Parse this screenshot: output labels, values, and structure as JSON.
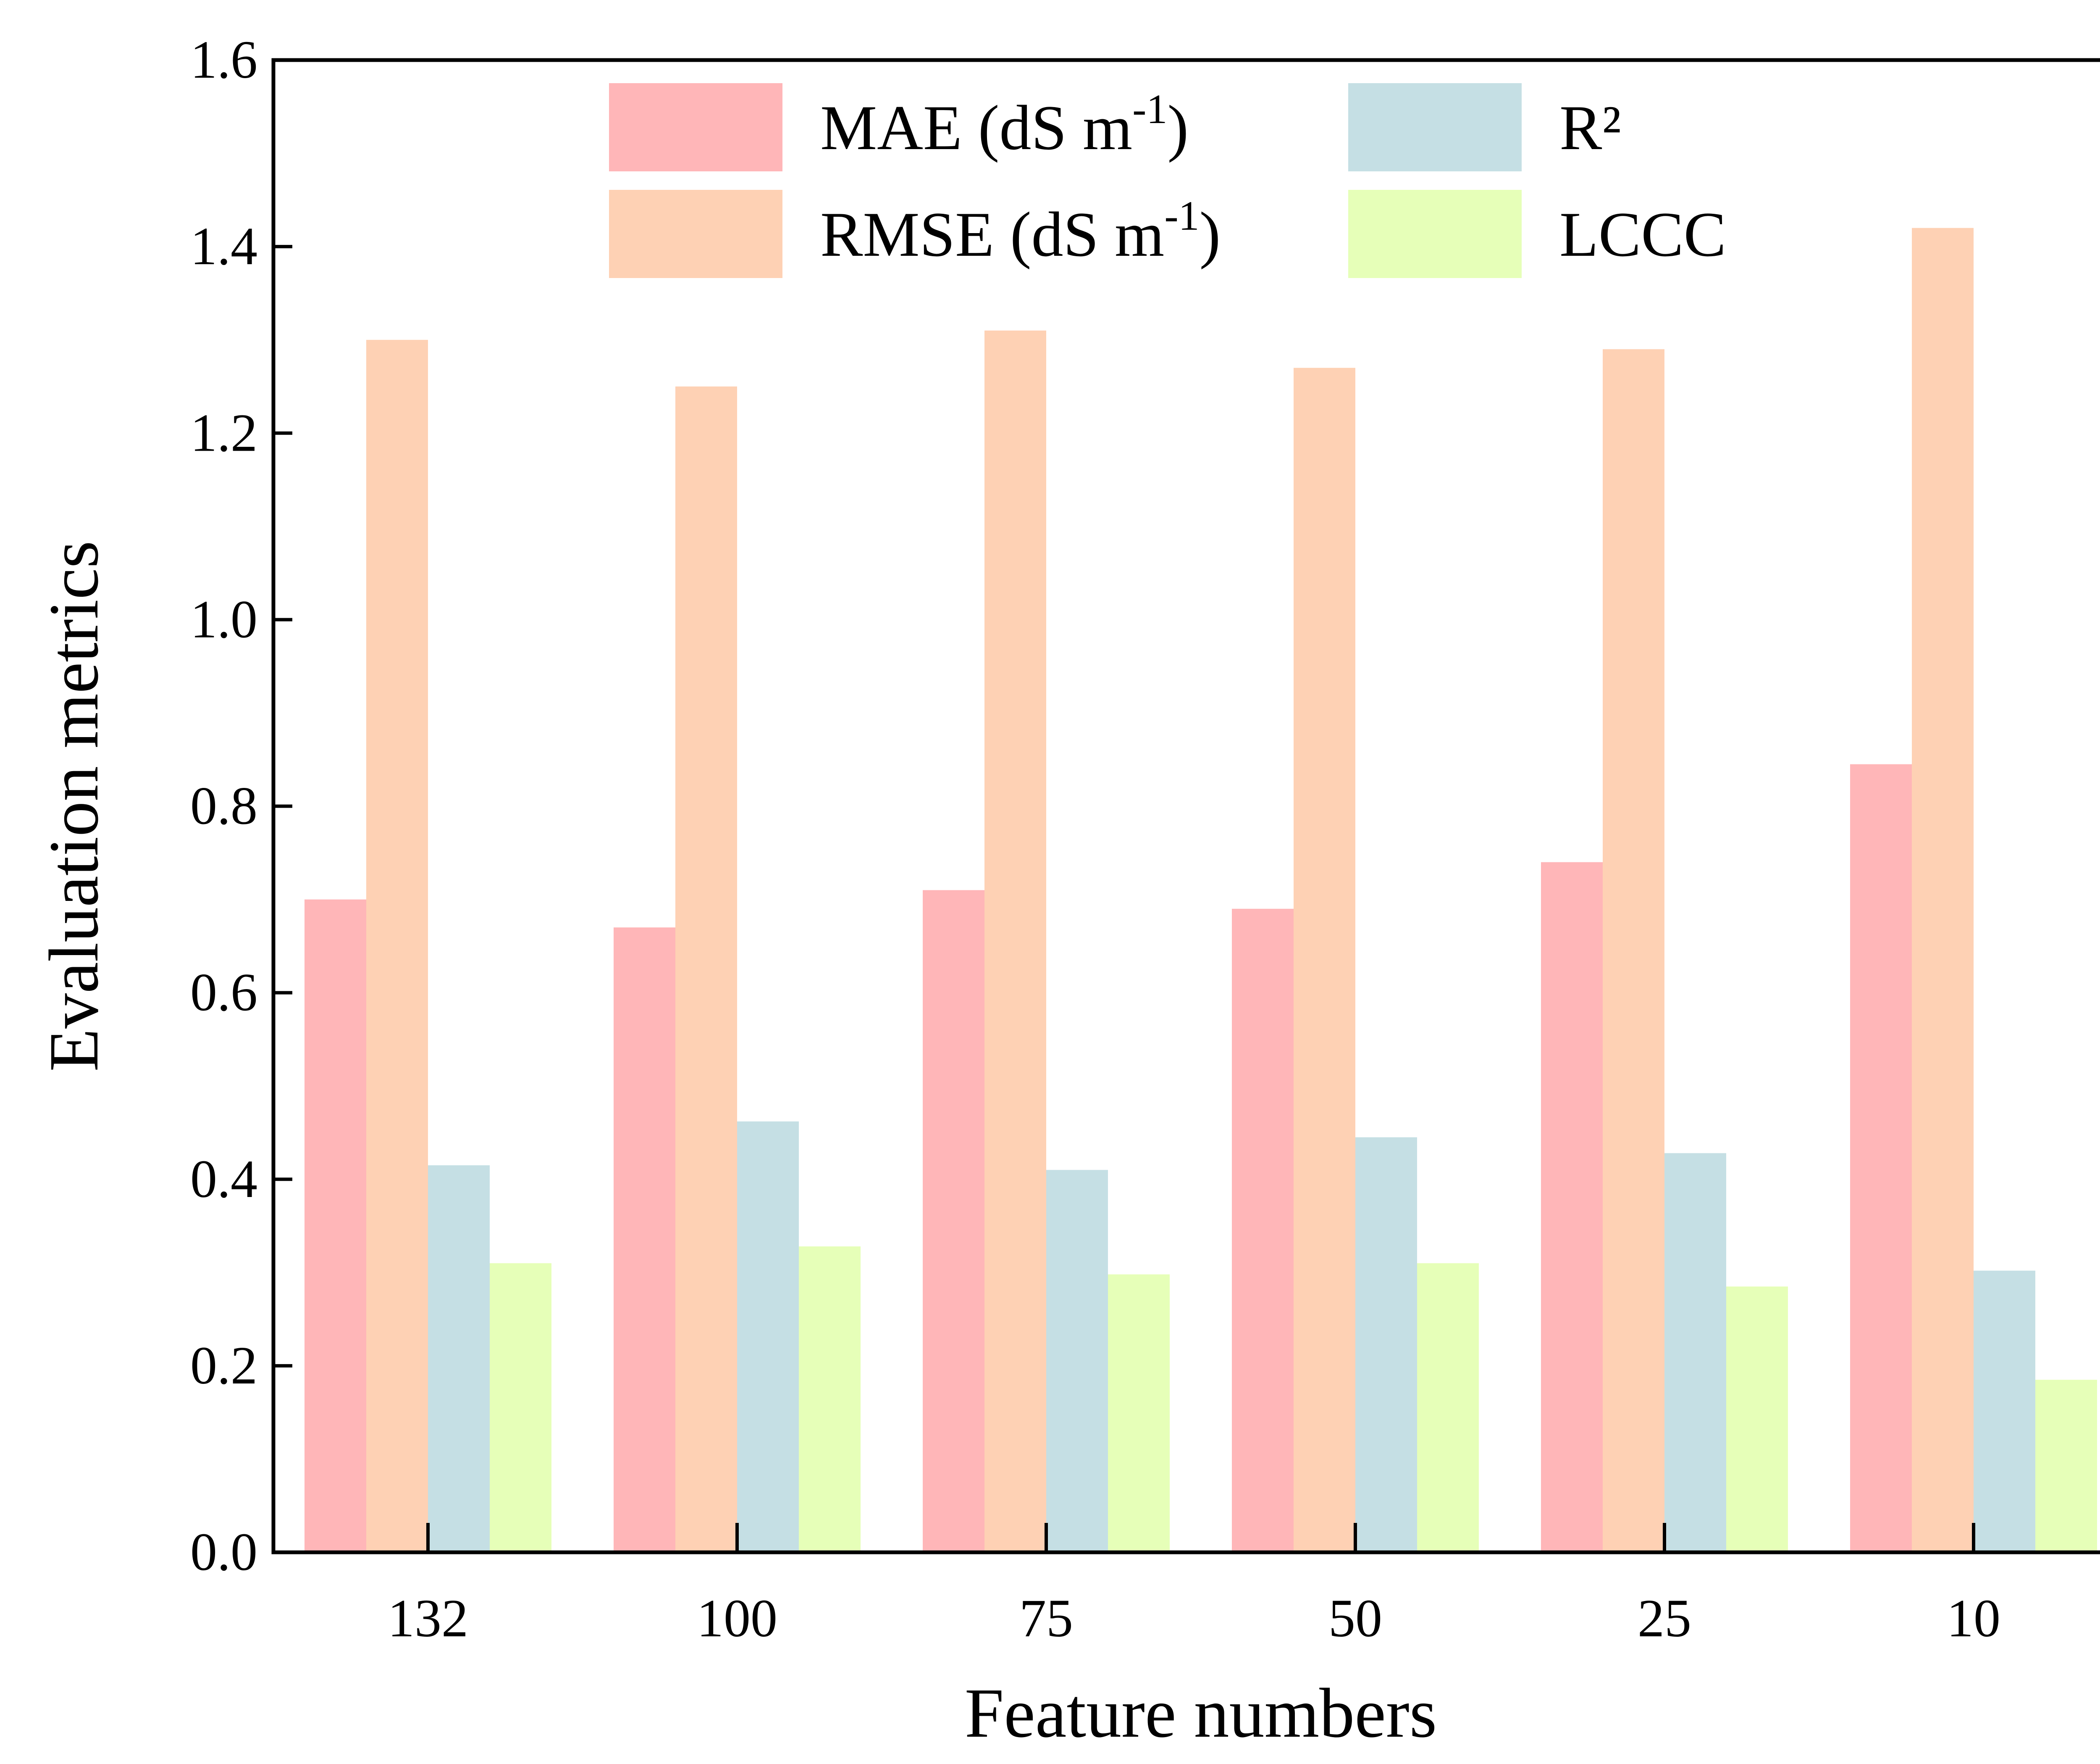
{
  "chart_data": {
    "type": "bar",
    "title": "",
    "xlabel": "Feature numbers",
    "ylabel": "Evaluation metrics",
    "categories": [
      "132",
      "100",
      "75",
      "50",
      "25",
      "10"
    ],
    "ylim": [
      0,
      1.6
    ],
    "yticks": [
      "0.0",
      "0.2",
      "0.4",
      "0.6",
      "0.8",
      "1.0",
      "1.2",
      "1.4",
      "1.6"
    ],
    "grid": false,
    "legend_position": "top-center",
    "series": [
      {
        "name": "MAE (dS m-1)",
        "label_main": "MAE (dS m",
        "label_sup": "-1",
        "label_end": ")",
        "color": "#FFB6B8",
        "values": [
          0.7,
          0.67,
          0.71,
          0.69,
          0.74,
          0.845
        ]
      },
      {
        "name": "RMSE (dS m-1)",
        "label_main": "RMSE (dS m",
        "label_sup": "-1",
        "label_end": ")",
        "color": "#FED1B4",
        "values": [
          1.3,
          1.25,
          1.31,
          1.27,
          1.29,
          1.42
        ]
      },
      {
        "name": "R²",
        "label_main": "R²",
        "label_sup": "",
        "label_end": "",
        "color": "#C5DFE4",
        "values": [
          0.415,
          0.462,
          0.41,
          0.445,
          0.428,
          0.302
        ]
      },
      {
        "name": "LCCC",
        "label_main": "LCCC",
        "label_sup": "",
        "label_end": "",
        "color": "#E6FFB8",
        "values": [
          0.31,
          0.328,
          0.298,
          0.31,
          0.285,
          0.185
        ]
      }
    ]
  }
}
